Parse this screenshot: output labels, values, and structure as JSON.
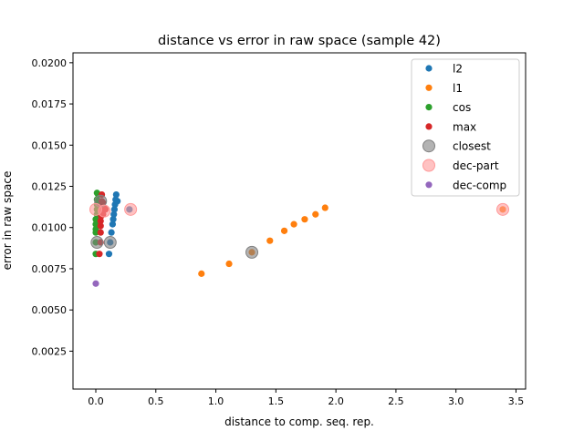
{
  "chart_data": {
    "type": "scatter",
    "title": "distance vs error in raw space (sample 42)",
    "xlabel": "distance to comp. seq. rep.",
    "ylabel": "error in raw space",
    "xlim": [
      -0.19,
      3.58
    ],
    "ylim": [
      0.0002,
      0.0206
    ],
    "xticks": [
      0.0,
      0.5,
      1.0,
      1.5,
      2.0,
      2.5,
      3.0,
      3.5
    ],
    "xtick_labels": [
      "0.0",
      "0.5",
      "1.0",
      "1.5",
      "2.0",
      "2.5",
      "3.0",
      "3.5"
    ],
    "yticks": [
      0.0025,
      0.005,
      0.0075,
      0.01,
      0.0125,
      0.015,
      0.0175,
      0.02
    ],
    "ytick_labels": [
      "0.0025",
      "0.0050",
      "0.0075",
      "0.0100",
      "0.0125",
      "0.0150",
      "0.0175",
      "0.0200"
    ],
    "grid": false,
    "legend_position": "top-right",
    "series": [
      {
        "name": "l2",
        "color": "#1f77b4",
        "marker": "dot",
        "x": [
          0.11,
          0.12,
          0.13,
          0.14,
          0.145,
          0.15,
          0.155,
          0.16,
          0.165,
          0.17,
          0.18,
          0.28
        ],
        "y": [
          0.0084,
          0.0091,
          0.0097,
          0.0102,
          0.0105,
          0.0108,
          0.0111,
          0.0114,
          0.0117,
          0.012,
          0.0116,
          0.0111
        ]
      },
      {
        "name": "l1",
        "color": "#ff7f0e",
        "marker": "dot",
        "x": [
          0.88,
          1.11,
          1.3,
          1.45,
          1.57,
          1.65,
          1.74,
          1.83,
          1.91,
          3.39
        ],
        "y": [
          0.0072,
          0.0078,
          0.0085,
          0.0092,
          0.0098,
          0.0102,
          0.0105,
          0.0108,
          0.0112,
          0.0111
        ]
      },
      {
        "name": "cos",
        "color": "#2ca02c",
        "marker": "dot",
        "x": [
          0.0,
          0.0,
          0.0,
          0.0,
          0.0,
          0.0,
          0.01,
          0.01,
          0.01,
          0.01,
          0.02,
          0.02,
          0.02,
          0.03,
          0.01
        ],
        "y": [
          0.0084,
          0.0091,
          0.0097,
          0.0099,
          0.0102,
          0.0105,
          0.0108,
          0.0111,
          0.0114,
          0.0117,
          0.012,
          0.0116,
          0.0111,
          0.0114,
          0.0121
        ]
      },
      {
        "name": "max",
        "color": "#d62728",
        "marker": "dot",
        "x": [
          0.03,
          0.04,
          0.04,
          0.04,
          0.04,
          0.045,
          0.045,
          0.05,
          0.05,
          0.05,
          0.06,
          0.07,
          0.08,
          0.06
        ],
        "y": [
          0.0084,
          0.0091,
          0.0097,
          0.0101,
          0.0104,
          0.0107,
          0.011,
          0.0113,
          0.0116,
          0.012,
          0.0115,
          0.0112,
          0.0111,
          0.0108
        ]
      },
      {
        "name": "closest",
        "color": "#808080",
        "marker": "big-circle",
        "x": [
          0.01,
          0.04,
          0.12,
          1.3
        ],
        "y": [
          0.0091,
          0.0116,
          0.0091,
          0.0085
        ]
      },
      {
        "name": "dec-part",
        "color": "#ff9999",
        "marker": "big-circle",
        "x": [
          0.0,
          0.07,
          0.29,
          3.39
        ],
        "y": [
          0.0111,
          0.011,
          0.0111,
          0.0111
        ]
      },
      {
        "name": "dec-comp",
        "color": "#9467bd",
        "marker": "dot",
        "x": [
          0.0
        ],
        "y": [
          0.0066
        ]
      }
    ]
  }
}
